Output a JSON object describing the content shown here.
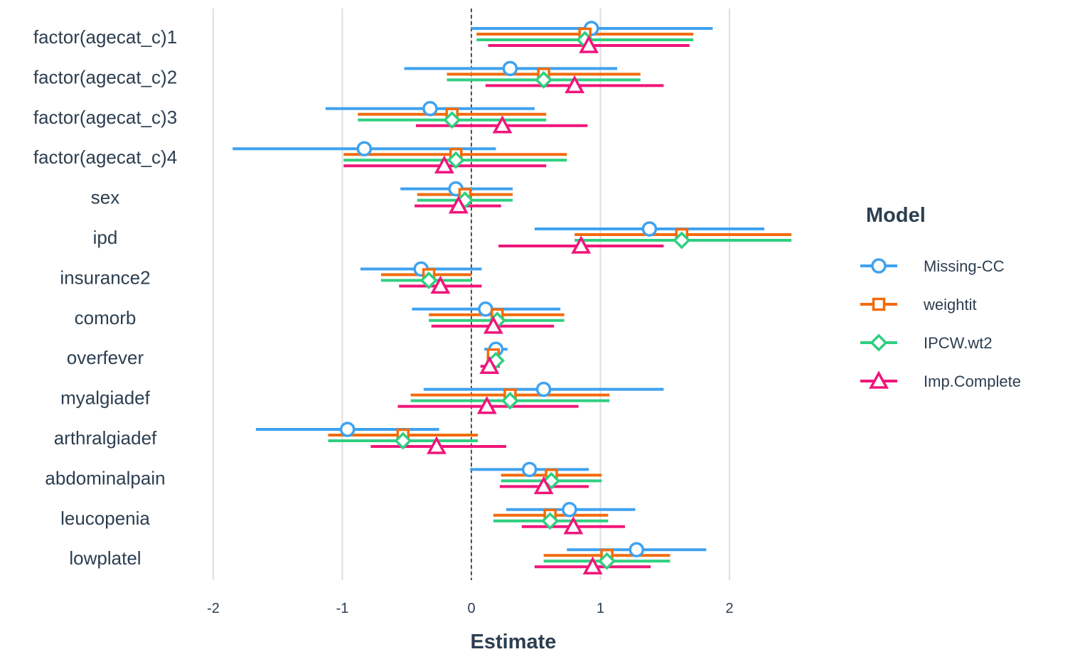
{
  "chart_data": {
    "type": "forest",
    "xlabel": "Estimate",
    "xlim": [
      -2.1,
      2.6
    ],
    "xticks": [
      -2,
      -1,
      0,
      1,
      2
    ],
    "xtick_labels": [
      "-2",
      "-1",
      "0",
      "1",
      "2"
    ],
    "reference_line": 0,
    "grid": true,
    "legend": {
      "title": "Model",
      "position": "right"
    },
    "categories": [
      "factor(agecat_c)1",
      "factor(agecat_c)2",
      "factor(agecat_c)3",
      "factor(agecat_c)4",
      "sex",
      "ipd",
      "insurance2",
      "comorb",
      "overfever",
      "myalgiadef",
      "arthralgiadef",
      "abdominalpain",
      "leucopenia",
      "lowplatel"
    ],
    "series": [
      {
        "name": "Missing-CC",
        "color": "#3fa2f0",
        "marker": "circle",
        "estimate": [
          0.93,
          0.3,
          -0.32,
          -0.83,
          -0.12,
          1.38,
          -0.39,
          0.11,
          0.19,
          0.56,
          -0.96,
          0.45,
          0.76,
          1.28
        ],
        "lower": [
          0.0,
          -0.52,
          -1.13,
          -1.85,
          -0.55,
          0.49,
          -0.86,
          -0.46,
          0.1,
          -0.37,
          -1.67,
          -0.01,
          0.27,
          0.74
        ],
        "upper": [
          1.87,
          1.13,
          0.49,
          0.19,
          0.32,
          2.27,
          0.08,
          0.69,
          0.28,
          1.49,
          -0.25,
          0.91,
          1.27,
          1.82
        ]
      },
      {
        "name": "weightit",
        "color": "#f26c0d",
        "marker": "square",
        "estimate": [
          0.88,
          0.56,
          -0.15,
          -0.12,
          -0.05,
          1.63,
          -0.33,
          0.2,
          0.17,
          0.3,
          -0.53,
          0.62,
          0.61,
          1.05
        ],
        "lower": [
          0.04,
          -0.19,
          -0.88,
          -0.99,
          -0.42,
          0.8,
          -0.7,
          -0.33,
          0.12,
          -0.47,
          -1.11,
          0.23,
          0.17,
          0.56
        ],
        "upper": [
          1.72,
          1.31,
          0.58,
          0.74,
          0.32,
          2.48,
          0.0,
          0.72,
          0.22,
          1.07,
          0.05,
          1.01,
          1.06,
          1.54
        ]
      },
      {
        "name": "IPCW.wt2",
        "color": "#2fcf80",
        "marker": "diamond",
        "estimate": [
          0.88,
          0.56,
          -0.15,
          -0.12,
          -0.05,
          1.63,
          -0.33,
          0.2,
          0.19,
          0.3,
          -0.53,
          0.62,
          0.61,
          1.05
        ],
        "lower": [
          0.04,
          -0.19,
          -0.88,
          -0.99,
          -0.42,
          0.8,
          -0.7,
          -0.33,
          0.13,
          -0.47,
          -1.11,
          0.23,
          0.17,
          0.56
        ],
        "upper": [
          1.72,
          1.31,
          0.58,
          0.74,
          0.32,
          2.48,
          0.0,
          0.72,
          0.25,
          1.07,
          0.05,
          1.01,
          1.06,
          1.54
        ]
      },
      {
        "name": "Imp.Complete",
        "color": "#f0157a",
        "marker": "triangle",
        "estimate": [
          0.91,
          0.8,
          0.24,
          -0.21,
          -0.1,
          0.85,
          -0.24,
          0.17,
          0.14,
          0.12,
          -0.27,
          0.56,
          0.79,
          0.94
        ],
        "lower": [
          0.13,
          0.11,
          -0.43,
          -0.99,
          -0.44,
          0.21,
          -0.56,
          -0.31,
          0.07,
          -0.57,
          -0.78,
          0.22,
          0.39,
          0.49
        ],
        "upper": [
          1.69,
          1.49,
          0.9,
          0.58,
          0.23,
          1.49,
          0.08,
          0.64,
          0.22,
          0.83,
          0.27,
          0.91,
          1.19,
          1.39
        ]
      }
    ]
  }
}
